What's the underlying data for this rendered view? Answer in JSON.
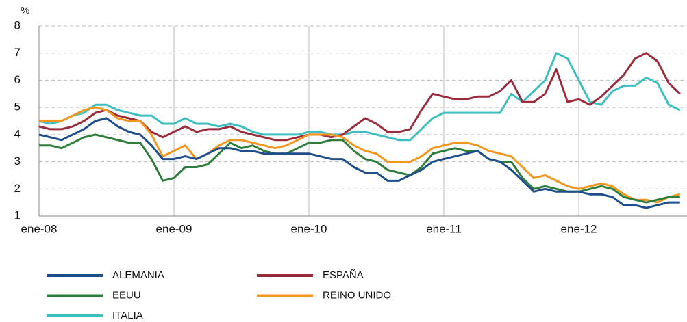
{
  "chart_data": {
    "type": "line",
    "y_label": "%",
    "categories": [
      "ene-08",
      null,
      null,
      null,
      null,
      null,
      null,
      null,
      null,
      null,
      null,
      null,
      "ene-09",
      null,
      null,
      null,
      null,
      null,
      null,
      null,
      null,
      null,
      null,
      null,
      "ene-10",
      null,
      null,
      null,
      null,
      null,
      null,
      null,
      null,
      null,
      null,
      null,
      "ene-11",
      null,
      null,
      null,
      null,
      null,
      null,
      null,
      null,
      null,
      null,
      null,
      "ene-12",
      null,
      null,
      null,
      null,
      null,
      null,
      null,
      null,
      null
    ],
    "series": [
      {
        "name": "ALEMANIA",
        "color": "#1f4e8c",
        "values": [
          4.0,
          3.9,
          3.8,
          4.0,
          4.2,
          4.5,
          4.6,
          4.3,
          4.1,
          4.0,
          3.6,
          3.1,
          3.1,
          3.2,
          3.1,
          3.3,
          3.5,
          3.5,
          3.4,
          3.4,
          3.3,
          3.3,
          3.3,
          3.3,
          3.3,
          3.2,
          3.1,
          3.1,
          2.8,
          2.6,
          2.6,
          2.3,
          2.3,
          2.5,
          2.7,
          3.0,
          3.1,
          3.2,
          3.3,
          3.4,
          3.1,
          3.0,
          2.7,
          2.3,
          1.9,
          2.0,
          1.9,
          1.9,
          1.9,
          1.8,
          1.8,
          1.7,
          1.4,
          1.4,
          1.3,
          1.4,
          1.5,
          1.5
        ]
      },
      {
        "name": "ESPAÑA",
        "color": "#9b2c3c",
        "values": [
          4.3,
          4.2,
          4.2,
          4.3,
          4.5,
          4.8,
          4.9,
          4.7,
          4.6,
          4.5,
          4.1,
          3.9,
          4.1,
          4.3,
          4.1,
          4.2,
          4.2,
          4.3,
          4.1,
          4.0,
          3.9,
          3.8,
          3.8,
          3.9,
          4.0,
          4.0,
          3.9,
          4.0,
          4.3,
          4.6,
          4.4,
          4.1,
          4.1,
          4.2,
          4.9,
          5.5,
          5.4,
          5.3,
          5.3,
          5.4,
          5.4,
          5.6,
          6.0,
          5.2,
          5.2,
          5.5,
          6.4,
          5.2,
          5.3,
          5.1,
          5.4,
          5.8,
          6.2,
          6.8,
          7.0,
          6.7,
          5.9,
          5.5
        ]
      },
      {
        "name": "EEUU",
        "color": "#2e7d3a",
        "values": [
          3.6,
          3.6,
          3.5,
          3.7,
          3.9,
          4.0,
          3.9,
          3.8,
          3.7,
          3.7,
          3.1,
          2.3,
          2.4,
          2.8,
          2.8,
          2.9,
          3.3,
          3.7,
          3.5,
          3.6,
          3.4,
          3.3,
          3.3,
          3.5,
          3.7,
          3.7,
          3.8,
          3.8,
          3.4,
          3.1,
          3.0,
          2.7,
          2.6,
          2.5,
          2.8,
          3.3,
          3.4,
          3.5,
          3.4,
          3.4,
          3.1,
          3.0,
          3.0,
          2.4,
          2.0,
          2.1,
          2.0,
          1.9,
          1.9,
          2.0,
          2.1,
          2.0,
          1.7,
          1.6,
          1.5,
          1.6,
          1.7,
          1.7
        ]
      },
      {
        "name": "REINO UNIDO",
        "color": "#f3961e",
        "values": [
          4.5,
          4.5,
          4.5,
          4.7,
          4.9,
          5.0,
          4.9,
          4.6,
          4.5,
          4.5,
          4.0,
          3.2,
          3.4,
          3.6,
          3.1,
          3.3,
          3.6,
          3.8,
          3.8,
          3.7,
          3.6,
          3.5,
          3.6,
          3.8,
          4.0,
          4.0,
          4.0,
          3.9,
          3.6,
          3.4,
          3.3,
          3.0,
          3.0,
          3.0,
          3.2,
          3.5,
          3.6,
          3.7,
          3.7,
          3.6,
          3.4,
          3.3,
          3.2,
          2.8,
          2.4,
          2.5,
          2.3,
          2.1,
          2.0,
          2.1,
          2.2,
          2.1,
          1.8,
          1.6,
          1.6,
          1.5,
          1.7,
          1.8
        ]
      },
      {
        "name": "ITALIA",
        "color": "#3cbfbf",
        "values": [
          4.5,
          4.4,
          4.5,
          4.7,
          4.8,
          5.1,
          5.1,
          4.9,
          4.8,
          4.7,
          4.7,
          4.4,
          4.4,
          4.6,
          4.4,
          4.4,
          4.3,
          4.4,
          4.3,
          4.1,
          4.0,
          4.0,
          4.0,
          4.0,
          4.1,
          4.1,
          4.0,
          4.0,
          4.1,
          4.1,
          4.0,
          3.9,
          3.8,
          3.8,
          4.2,
          4.6,
          4.8,
          4.8,
          4.8,
          4.8,
          4.8,
          4.8,
          5.5,
          5.2,
          5.6,
          6.0,
          7.0,
          6.8,
          6.0,
          5.2,
          5.1,
          5.6,
          5.8,
          5.8,
          6.1,
          5.9,
          5.1,
          4.9
        ]
      }
    ],
    "ylim": [
      1,
      8
    ],
    "yticks": [
      1,
      2,
      3,
      4,
      5,
      6,
      7,
      8
    ],
    "grid": true
  }
}
